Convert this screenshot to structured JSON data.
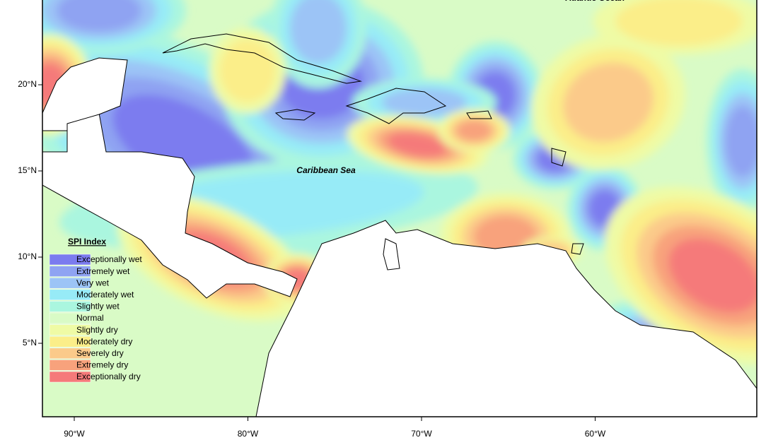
{
  "map": {
    "places": [
      {
        "label": "Caribbean Sea",
        "lon": -75.5,
        "lat": 15
      },
      {
        "label": "Atlantic Ocean",
        "lon": -60,
        "lat": 25
      }
    ]
  },
  "legend": {
    "title": "SPI Index",
    "items": [
      {
        "label": "Exceptionally wet",
        "color": "#7b7bef"
      },
      {
        "label": "Extremely wet",
        "color": "#8fa3f2"
      },
      {
        "label": "Very wet",
        "color": "#9cc4f6"
      },
      {
        "label": "Moderately wet",
        "color": "#97ebf7"
      },
      {
        "label": "Slightly wet",
        "color": "#aaf6df"
      },
      {
        "label": "Normal",
        "color": "#d9fbc6"
      },
      {
        "label": "Slightly dry",
        "color": "#effba5"
      },
      {
        "label": "Moderately dry",
        "color": "#fbee89"
      },
      {
        "label": "Severely dry",
        "color": "#fbca8a"
      },
      {
        "label": "Extremely dry",
        "color": "#f8a27c"
      },
      {
        "label": "Exceptionally dry",
        "color": "#f57a7a"
      }
    ]
  },
  "axes": {
    "lon_ticks": [
      {
        "value": -90,
        "label": "90°W"
      },
      {
        "value": -80,
        "label": "80°W"
      },
      {
        "value": -70,
        "label": "70°W"
      },
      {
        "value": -60,
        "label": "60°W"
      }
    ],
    "lat_ticks": [
      {
        "value": 20,
        "label": "20°N"
      },
      {
        "value": 15,
        "label": "15°N"
      },
      {
        "value": 10,
        "label": "10°N"
      },
      {
        "value": 5,
        "label": "5°N"
      }
    ]
  }
}
